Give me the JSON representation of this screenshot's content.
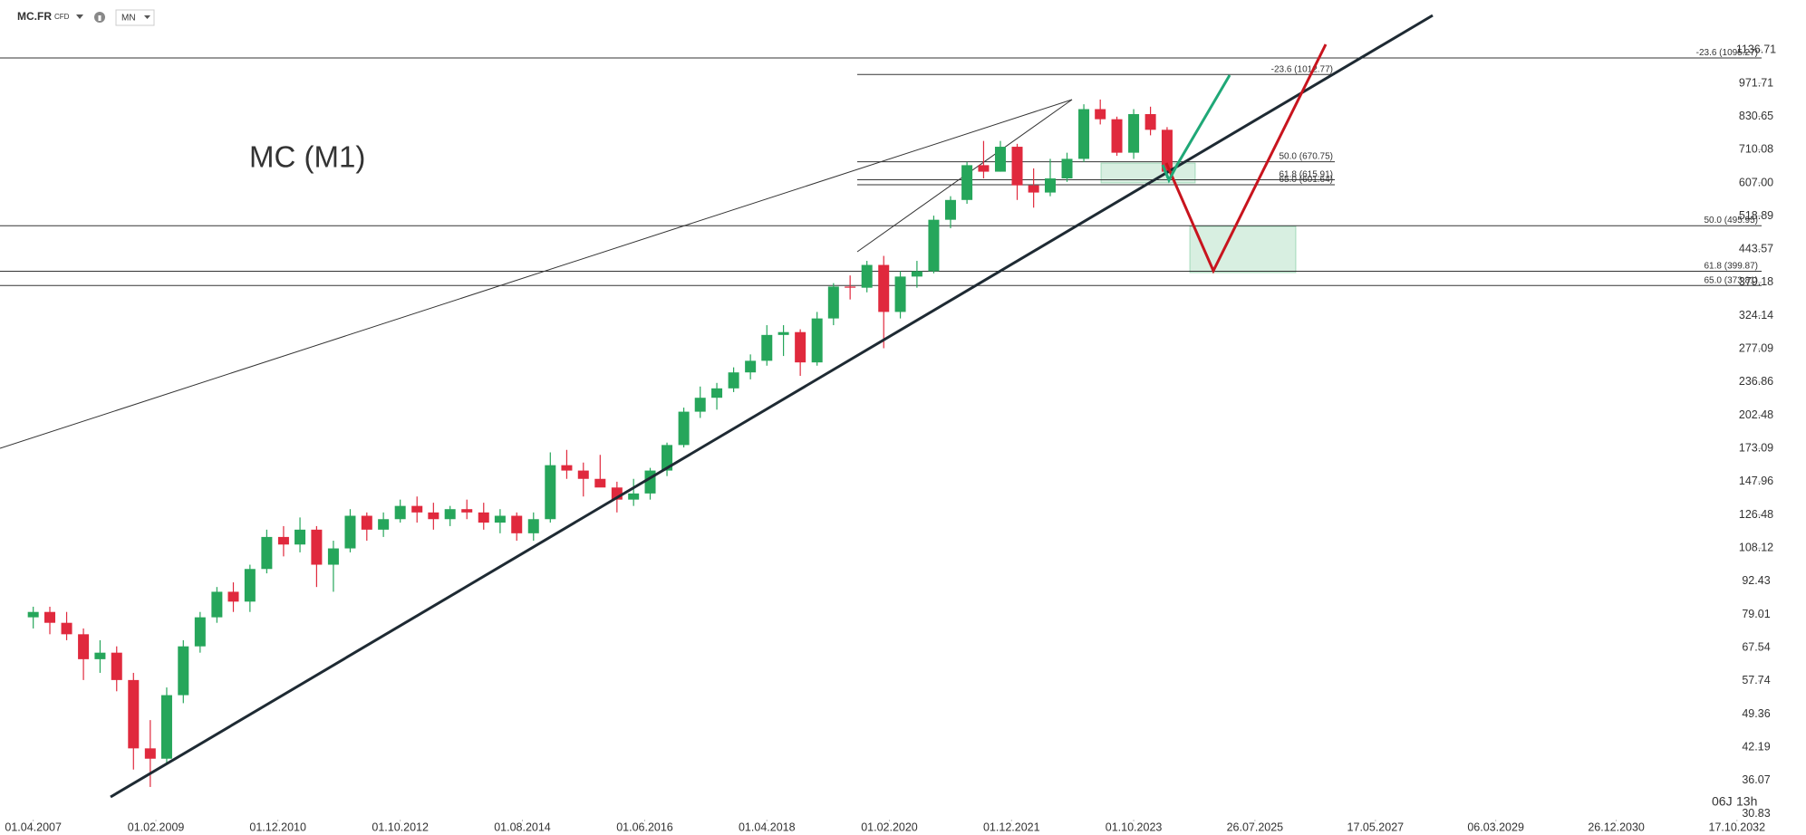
{
  "toolbar": {
    "symbol": "MC.FR",
    "tag": "CFD",
    "interval": "MN"
  },
  "countdown": {
    "days": "06J",
    "hours": "13h"
  },
  "chart_data": {
    "type": "candlestick",
    "title": "MC (M1)",
    "log_scale": true,
    "up_color": "#26a65b",
    "down_color": "#e0293d",
    "x": [
      "01.04.2007",
      "01.07.2007",
      "01.10.2007",
      "01.01.2008",
      "01.04.2008",
      "01.07.2008",
      "01.10.2008",
      "01.01.2009",
      "01.04.2009",
      "01.07.2009",
      "01.10.2009",
      "01.01.2010",
      "01.04.2010",
      "01.07.2010",
      "01.10.2010",
      "01.01.2011",
      "01.04.2011",
      "01.07.2011",
      "01.10.2011",
      "01.01.2012",
      "01.04.2012",
      "01.07.2012",
      "01.10.2012",
      "01.01.2013",
      "01.04.2013",
      "01.07.2013",
      "01.10.2013",
      "01.01.2014",
      "01.04.2014",
      "01.07.2014",
      "01.10.2014",
      "01.01.2015",
      "01.04.2015",
      "01.07.2015",
      "01.10.2015",
      "01.01.2016",
      "01.04.2016",
      "01.07.2016",
      "01.10.2016",
      "01.01.2017",
      "01.04.2017",
      "01.07.2017",
      "01.10.2017",
      "01.01.2018",
      "01.04.2018",
      "01.07.2018",
      "01.10.2018",
      "01.01.2019",
      "01.04.2019",
      "01.07.2019",
      "01.10.2019",
      "01.01.2020",
      "01.04.2020",
      "01.07.2020",
      "01.10.2020",
      "01.01.2021",
      "01.04.2021",
      "01.07.2021",
      "01.10.2021",
      "01.01.2022",
      "01.04.2022",
      "01.07.2022",
      "01.10.2022",
      "01.01.2023",
      "01.04.2023",
      "01.07.2023",
      "01.10.2023",
      "01.01.2024",
      "01.04.2024"
    ],
    "open": [
      78,
      80,
      76,
      72,
      64,
      66,
      58,
      42,
      40,
      54,
      68,
      78,
      88,
      84,
      98,
      114,
      110,
      118,
      100,
      108,
      126,
      118,
      124,
      132,
      128,
      124,
      130,
      128,
      122,
      126,
      116,
      124,
      160,
      156,
      150,
      144,
      136,
      140,
      156,
      176,
      206,
      220,
      230,
      248,
      262,
      296,
      300,
      260,
      320,
      372,
      370,
      412,
      330,
      390,
      400,
      510,
      560,
      660,
      640,
      720,
      600,
      580,
      620,
      680,
      860,
      820,
      700,
      840,
      780
    ],
    "high": [
      82,
      82,
      80,
      74,
      70,
      68,
      60,
      48,
      56,
      70,
      80,
      90,
      92,
      100,
      118,
      120,
      125,
      120,
      112,
      130,
      128,
      128,
      136,
      138,
      134,
      132,
      136,
      134,
      130,
      128,
      128,
      170,
      172,
      162,
      168,
      148,
      150,
      158,
      178,
      210,
      232,
      236,
      254,
      270,
      310,
      310,
      304,
      330,
      378,
      392,
      420,
      430,
      400,
      420,
      520,
      570,
      670,
      740,
      740,
      730,
      650,
      680,
      700,
      880,
      900,
      830,
      860,
      870,
      790
    ],
    "low": [
      74,
      72,
      70,
      58,
      60,
      55,
      38,
      35,
      39,
      52,
      66,
      76,
      80,
      80,
      96,
      104,
      106,
      90,
      88,
      106,
      112,
      114,
      122,
      122,
      118,
      120,
      124,
      118,
      116,
      112,
      112,
      122,
      150,
      138,
      146,
      128,
      132,
      136,
      152,
      174,
      200,
      208,
      226,
      240,
      256,
      268,
      244,
      256,
      310,
      350,
      362,
      278,
      320,
      370,
      396,
      490,
      550,
      620,
      640,
      560,
      540,
      570,
      610,
      670,
      800,
      690,
      680,
      760,
      620
    ],
    "close": [
      80,
      76,
      72,
      64,
      66,
      58,
      42,
      40,
      54,
      68,
      78,
      88,
      84,
      98,
      114,
      110,
      118,
      100,
      108,
      126,
      118,
      124,
      132,
      128,
      124,
      130,
      128,
      122,
      126,
      116,
      124,
      160,
      156,
      150,
      144,
      136,
      140,
      156,
      176,
      206,
      220,
      230,
      248,
      262,
      296,
      300,
      260,
      320,
      372,
      370,
      412,
      330,
      390,
      400,
      510,
      560,
      660,
      640,
      720,
      600,
      580,
      620,
      680,
      860,
      820,
      700,
      840,
      780,
      640
    ],
    "xlim": [
      "01.10.2006",
      "01.03.2033"
    ],
    "xticks": [
      "01.04.2007",
      "01.02.2009",
      "01.12.2010",
      "01.10.2012",
      "01.08.2014",
      "01.06.2016",
      "01.04.2018",
      "01.02.2020",
      "01.12.2021",
      "01.10.2023",
      "26.07.2025",
      "17.05.2027",
      "06.03.2029",
      "26.12.2030",
      "17.10.2032"
    ],
    "ylim": [
      30,
      1440
    ],
    "yticks": [
      1136.71,
      971.71,
      830.65,
      710.08,
      {
        "value": 607,
        "label": "607.00"
      },
      518.89,
      443.57,
      379.18,
      324.14,
      277.09,
      236.86,
      202.48,
      173.09,
      147.96,
      126.48,
      108.12,
      92.43,
      79.01,
      67.54,
      57.74,
      49.36,
      42.19,
      36.07,
      30.83
    ],
    "fibonacci": [
      {
        "levels": [
          {
            "label": "-23.6 (1095.27)",
            "value": 1095.27
          },
          {
            "label": "50.0 (495.95)",
            "value": 495.95
          },
          {
            "label": "61.8 (399.87)",
            "value": 399.87
          },
          {
            "label": "65.0 (373.81)",
            "value": 373.81
          }
        ]
      },
      {
        "levels": [
          {
            "label": "-23.6 (1012.77)",
            "value": 1012.77
          },
          {
            "label": "50.0 (670.75)",
            "value": 670.75
          },
          {
            "label": "61.8 (615.91)",
            "value": 615.91
          },
          {
            "label": "65.0 (601.64)",
            "value": 601.64
          }
        ]
      }
    ]
  }
}
